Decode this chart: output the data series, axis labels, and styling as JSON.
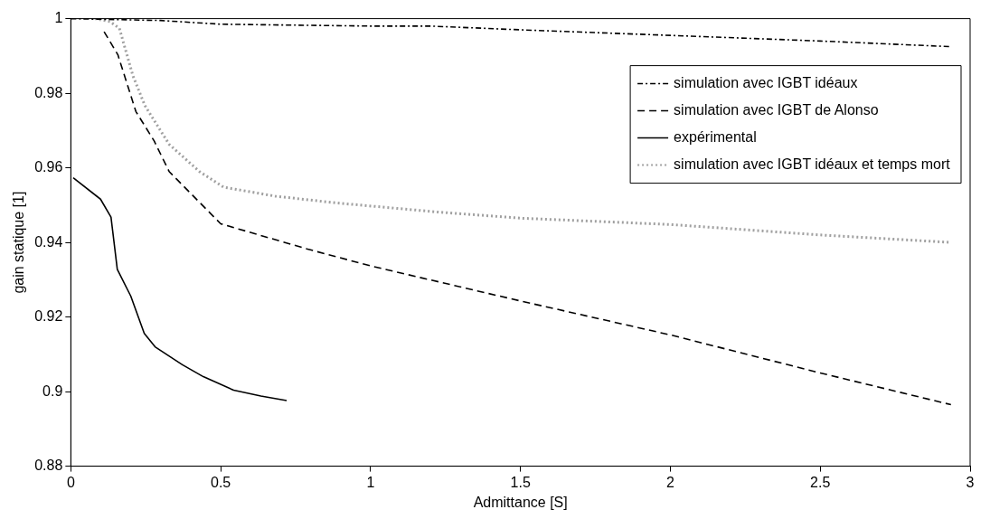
{
  "chart_data": {
    "type": "line",
    "xlabel": "Admittance [S]",
    "ylabel": "gain statique [1]",
    "xlim": [
      0,
      3
    ],
    "ylim": [
      0.88,
      1
    ],
    "xticks": [
      0,
      0.5,
      1,
      1.5,
      2,
      2.5,
      3
    ],
    "yticks": [
      0.88,
      0.9,
      0.92,
      0.94,
      0.96,
      0.98,
      1
    ],
    "grid": false,
    "legend": "top right",
    "marker": "none",
    "series": [
      {
        "name": "simulation avec IGBT idéaux",
        "color": "#000000",
        "line_style": "dashdot",
        "x": [
          0,
          0.3,
          0.5,
          1,
          1.2,
          1.5,
          2,
          2.5,
          2.93
        ],
        "values": [
          1,
          0.9995,
          0.9985,
          0.998,
          0.998,
          0.997,
          0.9955,
          0.994,
          0.9925
        ]
      },
      {
        "name": "simulation avec IGBT de Alonso",
        "color": "#000000",
        "line_style": "dashed",
        "x": [
          0.111,
          0.157,
          0.217,
          0.278,
          0.328,
          0.5,
          0.79,
          1,
          1.5,
          2,
          2.5,
          2.936
        ],
        "values": [
          0.9965,
          0.9903,
          0.9751,
          0.9672,
          0.959,
          0.945,
          0.9382,
          0.9337,
          0.9243,
          0.9152,
          0.905,
          0.8965
        ]
      },
      {
        "name": "expérimental",
        "color": "#000000",
        "line_style": "solid",
        "x": [
          0.008,
          0.099,
          0.134,
          0.155,
          0.2,
          0.245,
          0.281,
          0.372,
          0.442,
          0.543,
          0.634,
          0.72
        ],
        "values": [
          0.9573,
          0.9516,
          0.9468,
          0.9328,
          0.9256,
          0.9156,
          0.912,
          0.9072,
          0.904,
          0.9004,
          0.8988,
          0.8976
        ]
      },
      {
        "name": "simulation avec IGBT idéaux et temps mort",
        "color": "#a0a0a0",
        "line_style": "dotted",
        "x": [
          0.08,
          0.131,
          0.162,
          0.207,
          0.247,
          0.328,
          0.429,
          0.51,
          0.682,
          0.884,
          1.216,
          1.5,
          2,
          2.5,
          2.936
        ],
        "values": [
          1,
          0.9992,
          0.9974,
          0.9847,
          0.9767,
          0.9663,
          0.959,
          0.9548,
          0.9524,
          0.9506,
          0.9482,
          0.9465,
          0.9448,
          0.942,
          0.94
        ]
      }
    ]
  }
}
